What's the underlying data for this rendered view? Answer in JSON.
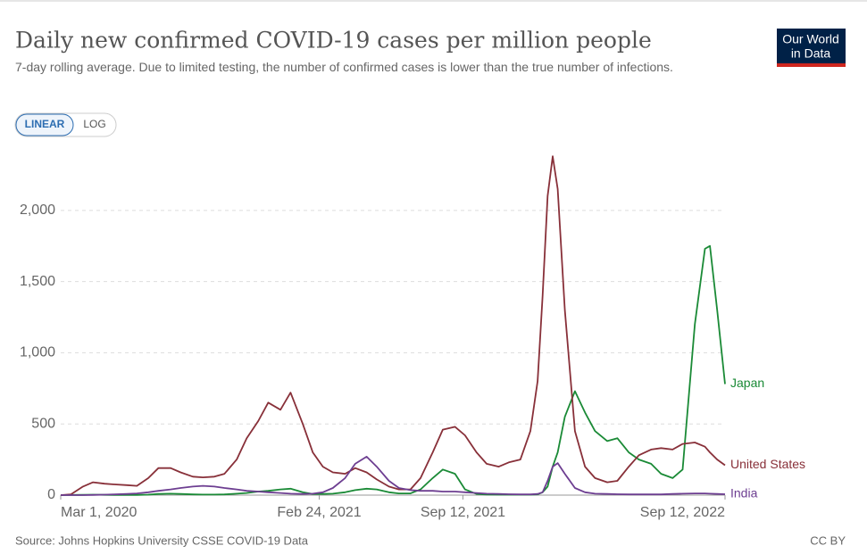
{
  "chart_data": {
    "type": "line",
    "title": "Daily new confirmed COVID-19 cases per million people",
    "subtitle": "7-day rolling average. Due to limited testing, the number of confirmed cases is lower than the true number of infections.",
    "scale_options": [
      "LINEAR",
      "LOG"
    ],
    "log_scale": false,
    "logo": [
      "Our World",
      "in Data"
    ],
    "source": "Source: Johns Hopkins University CSSE COVID-19 Data",
    "license": "CC BY",
    "grid": true,
    "xlim": [
      "2020-03-01",
      "2022-09-12"
    ],
    "xticks": [
      {
        "value": "2020-03-01",
        "label": "Mar 1, 2020"
      },
      {
        "value": "2021-02-24",
        "label": "Feb 24, 2021"
      },
      {
        "value": "2021-09-12",
        "label": "Sep 12, 2021"
      },
      {
        "value": "2022-09-12",
        "label": "Sep 12, 2022"
      }
    ],
    "ylim": [
      0,
      2400
    ],
    "yticks": [
      0,
      {
        "value": 500,
        "label": "500"
      },
      {
        "value": 1000,
        "label": "1,000"
      },
      {
        "value": 1500,
        "label": "1,500"
      },
      {
        "value": 2000,
        "label": "2,000"
      }
    ],
    "x": [
      "2020-03-01",
      "2020-03-15",
      "2020-04-01",
      "2020-04-15",
      "2020-05-01",
      "2020-05-15",
      "2020-06-01",
      "2020-06-15",
      "2020-07-01",
      "2020-07-15",
      "2020-08-01",
      "2020-08-15",
      "2020-09-01",
      "2020-09-15",
      "2020-10-01",
      "2020-10-15",
      "2020-11-01",
      "2020-11-15",
      "2020-12-01",
      "2020-12-15",
      "2021-01-01",
      "2021-01-15",
      "2021-02-01",
      "2021-02-15",
      "2021-03-01",
      "2021-03-15",
      "2021-04-01",
      "2021-04-15",
      "2021-05-01",
      "2021-05-15",
      "2021-06-01",
      "2021-06-15",
      "2021-07-01",
      "2021-07-15",
      "2021-08-01",
      "2021-08-15",
      "2021-09-01",
      "2021-09-15",
      "2021-10-01",
      "2021-10-15",
      "2021-11-01",
      "2021-11-15",
      "2021-12-01",
      "2021-12-15",
      "2021-12-25",
      "2022-01-01",
      "2022-01-08",
      "2022-01-15",
      "2022-01-22",
      "2022-02-01",
      "2022-02-15",
      "2022-03-01",
      "2022-03-15",
      "2022-04-01",
      "2022-04-15",
      "2022-05-01",
      "2022-05-15",
      "2022-06-01",
      "2022-06-15",
      "2022-07-01",
      "2022-07-15",
      "2022-08-01",
      "2022-08-15",
      "2022-08-22",
      "2022-09-01",
      "2022-09-12"
    ],
    "series": [
      {
        "name": "Japan",
        "color": "#1a8a36",
        "values": [
          0,
          1,
          2,
          3,
          2,
          1,
          1,
          1,
          3,
          8,
          10,
          8,
          5,
          4,
          4,
          5,
          10,
          15,
          25,
          30,
          40,
          45,
          20,
          8,
          8,
          10,
          20,
          35,
          45,
          40,
          20,
          12,
          12,
          40,
          120,
          180,
          150,
          40,
          8,
          4,
          3,
          3,
          3,
          3,
          5,
          20,
          60,
          200,
          300,
          550,
          730,
          580,
          450,
          380,
          400,
          300,
          250,
          220,
          150,
          120,
          180,
          1200,
          1730,
          1750,
          1300,
          780
        ]
      },
      {
        "name": "United States",
        "color": "#883039",
        "values": [
          0,
          5,
          60,
          90,
          80,
          75,
          70,
          65,
          120,
          190,
          190,
          160,
          130,
          125,
          130,
          150,
          250,
          400,
          520,
          650,
          600,
          720,
          500,
          300,
          200,
          160,
          150,
          190,
          160,
          110,
          60,
          40,
          40,
          120,
          300,
          460,
          480,
          420,
          300,
          220,
          200,
          230,
          250,
          450,
          800,
          1400,
          2100,
          2380,
          2150,
          1300,
          450,
          200,
          120,
          90,
          100,
          200,
          280,
          320,
          330,
          320,
          360,
          370,
          340,
          300,
          250,
          210
        ]
      },
      {
        "name": "India",
        "color": "#6d3e91",
        "values": [
          0,
          0,
          0,
          1,
          3,
          5,
          8,
          12,
          20,
          30,
          40,
          50,
          60,
          65,
          60,
          50,
          40,
          30,
          25,
          20,
          15,
          10,
          8,
          10,
          20,
          50,
          120,
          220,
          270,
          200,
          100,
          50,
          35,
          30,
          30,
          25,
          25,
          20,
          15,
          10,
          8,
          6,
          5,
          5,
          8,
          20,
          100,
          200,
          225,
          150,
          50,
          20,
          10,
          8,
          6,
          5,
          5,
          5,
          5,
          8,
          10,
          12,
          12,
          10,
          8,
          6
        ]
      }
    ]
  }
}
